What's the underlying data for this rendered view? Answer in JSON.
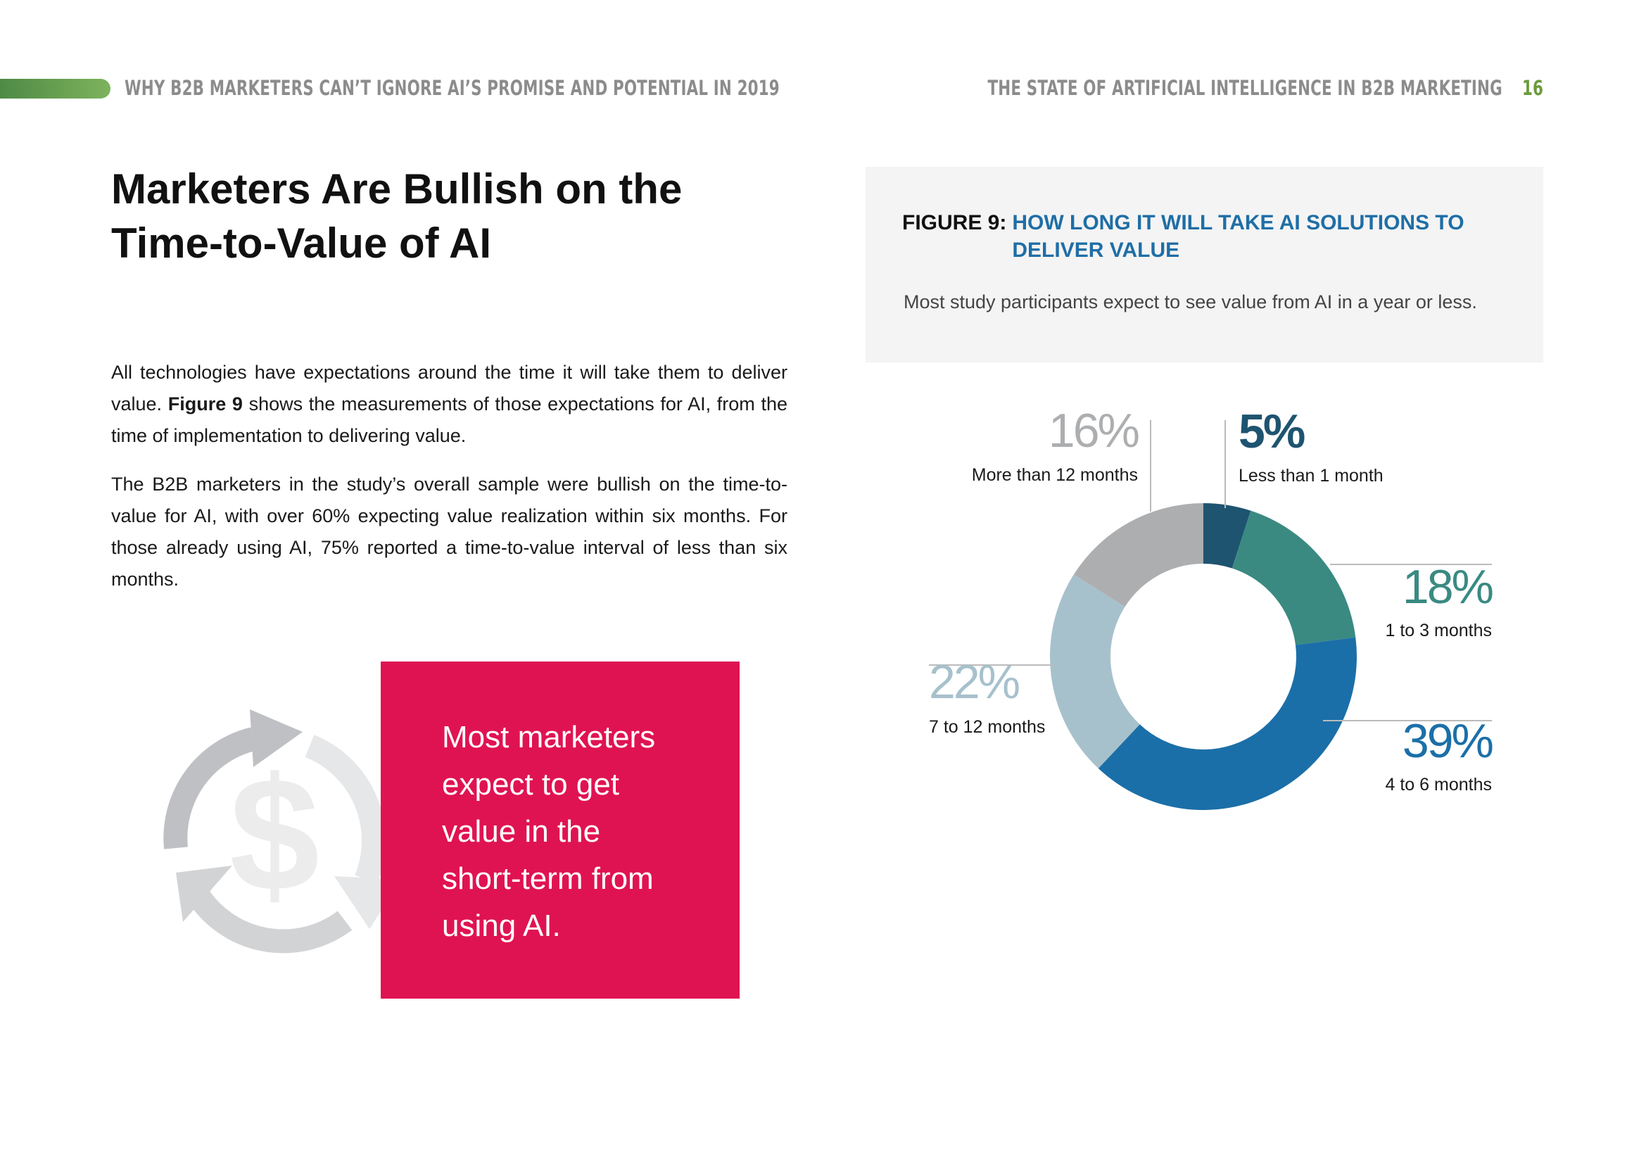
{
  "header": {
    "left": "WHY B2B MARKETERS CAN’T IGNORE AI’S PROMISE AND POTENTIAL IN 2019",
    "right": "THE STATE OF ARTIFICIAL INTELLIGENCE IN B2B MARKETING",
    "page": "16"
  },
  "article": {
    "title_lines": [
      "Marketers Are Bullish on the",
      "Time-to-Value of AI"
    ],
    "paragraphs": [
      [
        "All technologies have expectations around the time it will take them to deliver value. ",
        "Figure 9",
        " shows the measurements of those expectations for AI, from the time of implementation to delivering value."
      ],
      [
        "The B2B marketers in the study’s overall sample were bullish on the time-to-value for AI, with over 60% expecting value realization within six months. For those already using AI, 75% reported a time-to-value interval of less than six months."
      ]
    ]
  },
  "callout": {
    "lines": [
      "Most marketers",
      "expect to get",
      "value in the",
      "short-term from",
      "using AI."
    ]
  },
  "figure": {
    "label": "FIGURE 9:",
    "title": "HOW LONG IT WILL TAKE AI SOLUTIONS TO DELIVER VALUE",
    "subtitle": "Most study participants expect to see value from AI in a year or less."
  },
  "chart_data": {
    "type": "donut",
    "categories": [
      "Less than 1 month",
      "1 to 3 months",
      "4 to 6 months",
      "7 to 12 months",
      "More than 12 months"
    ],
    "values": [
      5,
      18,
      39,
      22,
      16
    ],
    "value_labels": [
      "5%",
      "18%",
      "39%",
      "22%",
      "16%"
    ],
    "colors": [
      "#1e5470",
      "#3a8a82",
      "#1b6fa8",
      "#a7c1cc",
      "#adaeb0"
    ]
  }
}
